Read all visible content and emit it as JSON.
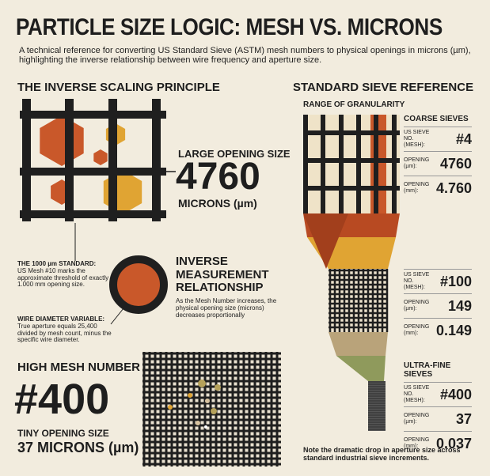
{
  "header": {
    "title": "PARTICLE SIZE LOGIC: MESH VS. MICRONS",
    "subtitle": "A technical reference for converting US Standard Sieve (ASTM) mesh numbers to physical openings in microns (µm), highlighting the inverse relationship between wire frequency and aperture size."
  },
  "left": {
    "heading": "THE INVERSE SCALING PRINCIPLE",
    "large": {
      "label": "LARGE OPENING SIZE",
      "value": "4760",
      "unit": "MICRONS (µm)"
    },
    "standard_note": {
      "title": "THE 1000 µm STANDARD:",
      "text": "US Mesh #10 marks the approximate threshold of exactly 1.000 mm opening size."
    },
    "inverse": {
      "title": "INVERSE MEASUREMENT RELATIONSHIP",
      "text": "As the Mesh Number increases, the physical opening size (microns) decreases proportionally"
    },
    "wire_note": {
      "title": "WIRE DIAMETER VARIABLE:",
      "text": "True aperture equals 25,400 divided by mesh count, minus the specific wire diameter."
    },
    "high": {
      "label": "HIGH MESH NUMBER",
      "value": "#400",
      "small_label": "TINY OPENING SIZE",
      "microns": "37 MICRONS (µm)"
    }
  },
  "right": {
    "heading": "STANDARD SIEVE REFERENCE",
    "subheading": "RANGE OF GRANULARITY",
    "sieves": [
      {
        "title": "COARSE SIEVES",
        "rows": [
          [
            "US SIEVE NO. (MESH):",
            "#4"
          ],
          [
            "OPENING (µm):",
            "4760"
          ],
          [
            "OPENING (mm):",
            "4.760"
          ]
        ]
      },
      {
        "rows": [
          [
            "US SIEVE NO. (MESH):",
            "#100"
          ],
          [
            "OPENING (µm):",
            "149"
          ],
          [
            "OPENING (mm):",
            "0.149"
          ]
        ]
      },
      {
        "title": "ULTRA-FINE SIEVES",
        "rows": [
          [
            "US SIEVE NO. (MESH):",
            "#400"
          ],
          [
            "OPENING (µm):",
            "37"
          ],
          [
            "OPENING (mm):",
            "0.037"
          ]
        ]
      }
    ],
    "footnote": "Note the dramatic drop in aperture size across standard industrial sieve increments."
  }
}
